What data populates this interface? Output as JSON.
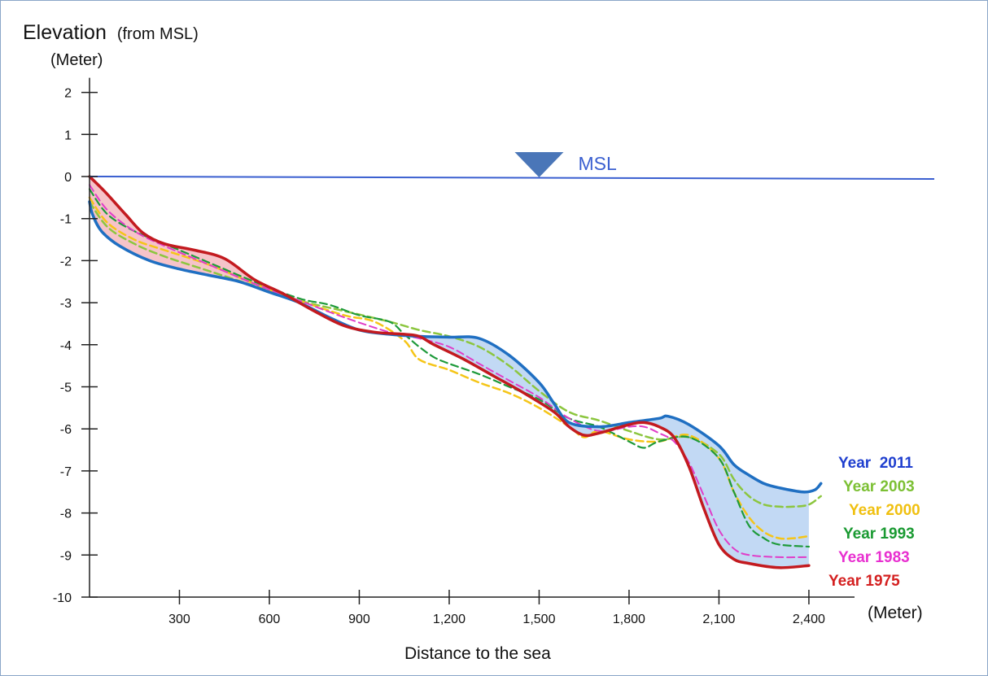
{
  "chart_data": {
    "type": "line",
    "ytitle": "Elevation",
    "ytitle_note": "(from MSL)",
    "yunit": "(Meter)",
    "xunit": "(Meter)",
    "xlabel": "Distance to the sea",
    "xlim": [
      0,
      2450
    ],
    "ylim": [
      -10,
      2
    ],
    "x_ticks": [
      {
        "value": 300,
        "label": "300"
      },
      {
        "value": 600,
        "label": "600"
      },
      {
        "value": 900,
        "label": "900"
      },
      {
        "value": 1200,
        "label": "1,200"
      },
      {
        "value": 1500,
        "label": "1,500"
      },
      {
        "value": 1800,
        "label": "1,800"
      },
      {
        "value": 2100,
        "label": "2,100"
      },
      {
        "value": 2400,
        "label": "2,400"
      }
    ],
    "y_ticks": [
      {
        "value": 2,
        "label": "2"
      },
      {
        "value": 1,
        "label": "1"
      },
      {
        "value": 0,
        "label": "0"
      },
      {
        "value": -1,
        "label": "-1"
      },
      {
        "value": -2,
        "label": "-2"
      },
      {
        "value": -3,
        "label": "-3"
      },
      {
        "value": -4,
        "label": "-4"
      },
      {
        "value": -5,
        "label": "-5"
      },
      {
        "value": -6,
        "label": "-6"
      },
      {
        "value": -7,
        "label": "-7"
      },
      {
        "value": -8,
        "label": "-8"
      },
      {
        "value": -9,
        "label": "-9"
      },
      {
        "value": -10,
        "label": "-10"
      }
    ],
    "msl": {
      "label": "MSL",
      "value": 0,
      "marker_x": 1500,
      "color": "#3a5fd0"
    },
    "fill_colors": {
      "erosion_above": "#f4b9bf",
      "deposit_below": "#b7d2f2"
    },
    "series": [
      {
        "name": "Year  2011",
        "color": "#1f6fc2",
        "legend_color": "#1f3fcf",
        "style": "solid",
        "width": 3.5,
        "x": [
          0,
          10,
          40,
          100,
          200,
          300,
          400,
          500,
          600,
          700,
          800,
          900,
          1000,
          1100,
          1200,
          1300,
          1400,
          1500,
          1550,
          1600,
          1700,
          1800,
          1900,
          1930,
          2000,
          2100,
          2150,
          2200,
          2250,
          2300,
          2380,
          2420,
          2440
        ],
        "y": [
          -0.6,
          -0.9,
          -1.3,
          -1.65,
          -2.0,
          -2.2,
          -2.35,
          -2.5,
          -2.75,
          -3.0,
          -3.35,
          -3.65,
          -3.75,
          -3.8,
          -3.82,
          -3.85,
          -4.25,
          -4.9,
          -5.4,
          -5.85,
          -5.95,
          -5.85,
          -5.75,
          -5.7,
          -5.9,
          -6.4,
          -6.85,
          -7.1,
          -7.3,
          -7.4,
          -7.5,
          -7.45,
          -7.3
        ]
      },
      {
        "name": "Year 2003",
        "color": "#8cc63f",
        "legend_color": "#7cc034",
        "style": "dash",
        "width": 2.5,
        "x": [
          0,
          60,
          150,
          250,
          400,
          550,
          700,
          850,
          1000,
          1100,
          1200,
          1300,
          1400,
          1500,
          1600,
          1700,
          1800,
          1900,
          2000,
          2100,
          2150,
          2200,
          2250,
          2300,
          2350,
          2400,
          2440
        ],
        "y": [
          -0.6,
          -1.2,
          -1.6,
          -1.9,
          -2.25,
          -2.6,
          -2.95,
          -3.2,
          -3.45,
          -3.65,
          -3.8,
          -4.05,
          -4.5,
          -5.1,
          -5.6,
          -5.8,
          -6.05,
          -6.25,
          -6.2,
          -6.6,
          -7.2,
          -7.6,
          -7.8,
          -7.85,
          -7.85,
          -7.8,
          -7.6
        ]
      },
      {
        "name": "Year 2000",
        "color": "#f5c518",
        "legend_color": "#f0c010",
        "style": "dash",
        "width": 2.5,
        "x": [
          0,
          60,
          150,
          250,
          400,
          550,
          700,
          850,
          950,
          1050,
          1100,
          1200,
          1300,
          1400,
          1500,
          1600,
          1650,
          1700,
          1800,
          1900,
          2000,
          2100,
          2150,
          2200,
          2250,
          2300,
          2350,
          2400
        ],
        "y": [
          -0.5,
          -1.1,
          -1.5,
          -1.75,
          -2.1,
          -2.55,
          -2.95,
          -3.3,
          -3.45,
          -3.9,
          -4.35,
          -4.6,
          -4.9,
          -5.15,
          -5.5,
          -5.95,
          -6.2,
          -6.05,
          -6.25,
          -6.3,
          -6.15,
          -6.7,
          -7.5,
          -8.1,
          -8.45,
          -8.6,
          -8.6,
          -8.55
        ]
      },
      {
        "name": "Year 1993",
        "color": "#1e9a3a",
        "legend_color": "#1a9a32",
        "style": "dash",
        "width": 2.2,
        "x": [
          0,
          60,
          150,
          250,
          400,
          550,
          700,
          800,
          900,
          1000,
          1050,
          1100,
          1150,
          1200,
          1300,
          1400,
          1500,
          1600,
          1700,
          1800,
          1850,
          1900,
          2000,
          2100,
          2150,
          2200,
          2250,
          2300,
          2400
        ],
        "y": [
          -0.3,
          -0.9,
          -1.3,
          -1.6,
          -2.05,
          -2.5,
          -2.9,
          -3.05,
          -3.3,
          -3.45,
          -3.75,
          -4.05,
          -4.3,
          -4.45,
          -4.7,
          -5.0,
          -5.3,
          -5.75,
          -5.95,
          -6.3,
          -6.45,
          -6.3,
          -6.2,
          -6.7,
          -7.5,
          -8.3,
          -8.6,
          -8.75,
          -8.8
        ]
      },
      {
        "name": "Year 1983",
        "color": "#e03dc8",
        "legend_color": "#e830d0",
        "style": "dash",
        "width": 2.0,
        "x": [
          0,
          60,
          150,
          250,
          400,
          550,
          700,
          850,
          1000,
          1100,
          1200,
          1300,
          1400,
          1500,
          1600,
          1700,
          1800,
          1850,
          1900,
          1950,
          2000,
          2050,
          2100,
          2150,
          2200,
          2300,
          2400
        ],
        "y": [
          -0.2,
          -0.8,
          -1.3,
          -1.65,
          -2.1,
          -2.55,
          -2.95,
          -3.35,
          -3.7,
          -3.85,
          -4.05,
          -4.45,
          -4.85,
          -5.25,
          -5.75,
          -6.05,
          -5.95,
          -5.95,
          -6.1,
          -6.3,
          -6.8,
          -7.6,
          -8.4,
          -8.85,
          -9.0,
          -9.05,
          -9.05
        ]
      },
      {
        "name": "Year 1975",
        "color": "#c31a1f",
        "legend_color": "#d42020",
        "style": "solid",
        "width": 3.5,
        "x": [
          0,
          50,
          120,
          180,
          250,
          350,
          450,
          550,
          650,
          750,
          850,
          950,
          1050,
          1100,
          1150,
          1250,
          1350,
          1450,
          1550,
          1600,
          1650,
          1700,
          1800,
          1850,
          1900,
          1950,
          2000,
          2050,
          2100,
          2150,
          2200,
          2300,
          2400
        ],
        "y": [
          0,
          -0.35,
          -0.9,
          -1.35,
          -1.6,
          -1.75,
          -1.95,
          -2.45,
          -2.8,
          -3.2,
          -3.55,
          -3.7,
          -3.75,
          -3.8,
          -4.0,
          -4.35,
          -4.75,
          -5.15,
          -5.6,
          -5.95,
          -6.15,
          -6.1,
          -5.9,
          -5.85,
          -5.95,
          -6.2,
          -6.9,
          -7.9,
          -8.75,
          -9.1,
          -9.2,
          -9.3,
          -9.25
        ]
      }
    ]
  }
}
